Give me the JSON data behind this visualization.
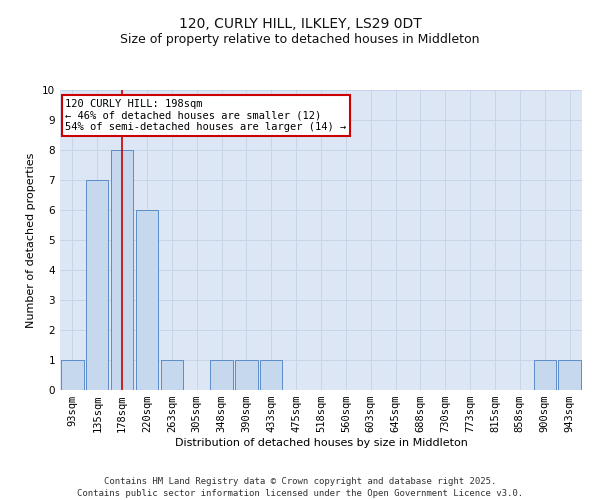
{
  "title": "120, CURLY HILL, ILKLEY, LS29 0DT",
  "subtitle": "Size of property relative to detached houses in Middleton",
  "xlabel": "Distribution of detached houses by size in Middleton",
  "ylabel": "Number of detached properties",
  "categories": [
    "93sqm",
    "135sqm",
    "178sqm",
    "220sqm",
    "263sqm",
    "305sqm",
    "348sqm",
    "390sqm",
    "433sqm",
    "475sqm",
    "518sqm",
    "560sqm",
    "603sqm",
    "645sqm",
    "688sqm",
    "730sqm",
    "773sqm",
    "815sqm",
    "858sqm",
    "900sqm",
    "943sqm"
  ],
  "values": [
    1,
    7,
    8,
    6,
    1,
    0,
    1,
    1,
    1,
    0,
    0,
    0,
    0,
    0,
    0,
    0,
    0,
    0,
    0,
    1,
    1
  ],
  "bar_color": "#c5d8ed",
  "bar_edge_color": "#5b8dc8",
  "red_line_x": 2,
  "annotation_text": "120 CURLY HILL: 198sqm\n← 46% of detached houses are smaller (12)\n54% of semi-detached houses are larger (14) →",
  "annotation_box_facecolor": "#ffffff",
  "annotation_box_edgecolor": "#cc0000",
  "ylim": [
    0,
    10
  ],
  "yticks": [
    0,
    1,
    2,
    3,
    4,
    5,
    6,
    7,
    8,
    9,
    10
  ],
  "grid_color": "#c8d4e8",
  "background_color": "#dce6f4",
  "footer_line1": "Contains HM Land Registry data © Crown copyright and database right 2025.",
  "footer_line2": "Contains public sector information licensed under the Open Government Licence v3.0.",
  "title_fontsize": 10,
  "subtitle_fontsize": 9,
  "axis_label_fontsize": 8,
  "tick_fontsize": 7.5,
  "annotation_fontsize": 7.5,
  "footer_fontsize": 6.5
}
